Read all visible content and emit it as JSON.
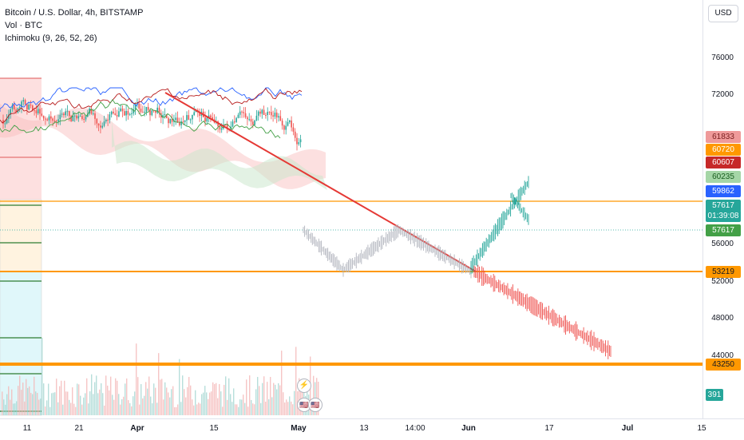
{
  "legend": {
    "symbol": "Bitcoin / U.S. Dollar, 4h, BITSTAMP",
    "volume": "Vol · BTC",
    "ichimoku": "Ichimoku (9, 26, 52, 26)"
  },
  "currency_button": "USD",
  "price_axis": {
    "ticks": [
      "76000",
      "72000",
      "56000",
      "52000",
      "48000",
      "44000"
    ],
    "tags": [
      {
        "label": "61833",
        "color": "#ef9a9a",
        "text_color": "#7a1f1f"
      },
      {
        "label": "60720",
        "color": "#ff9800",
        "text_color": "#ffffff"
      },
      {
        "label": "60607",
        "color": "#c62828",
        "text_color": "#ffffff"
      },
      {
        "label": "60235",
        "color": "#a5d6a7",
        "text_color": "#1b5e20"
      },
      {
        "label": "59862",
        "color": "#2962ff",
        "text_color": "#ffffff"
      },
      {
        "label": "57617",
        "color": "#26a69a",
        "text_color": "#ffffff"
      },
      {
        "label": "01:39:08",
        "color": "#26a69a",
        "text_color": "#ffffff"
      },
      {
        "label": "57617",
        "color": "#43a047",
        "text_color": "#ffffff"
      },
      {
        "label": "53219",
        "color": "#ff9800",
        "text_color": "#131722"
      },
      {
        "label": "43250",
        "color": "#ff9800",
        "text_color": "#131722"
      },
      {
        "label": "391",
        "color": "#26a69a",
        "text_color": "#ffffff"
      }
    ]
  },
  "time_axis": [
    "11",
    "21",
    "Apr",
    "15",
    "May",
    "13",
    "14:00",
    "Jun",
    "17",
    "Jul",
    "15"
  ],
  "events": {
    "flash": "⚡",
    "flag1": "🇺🇸",
    "flag2": "🇺🇸"
  },
  "colors": {
    "resistance_line": "#e53935",
    "horizontal_levels": "#ff9800",
    "bull_projection": "#26a69a",
    "bear_projection": "#ef5350",
    "gray_projection": "#b2b5be",
    "cloud_red": "#f8bbbb",
    "cloud_green": "#c8e6c9"
  }
}
